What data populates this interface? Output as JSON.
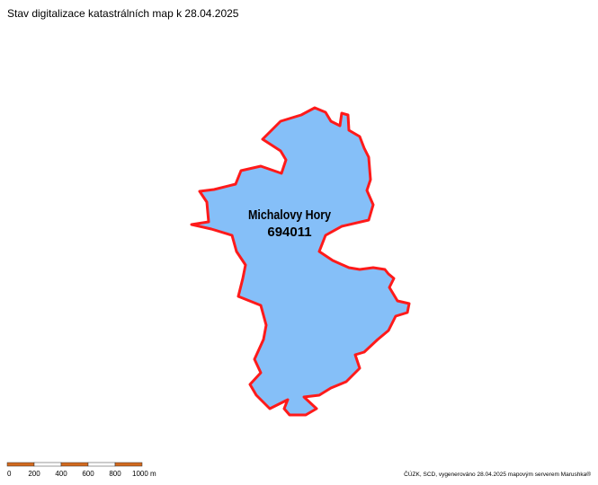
{
  "header": {
    "title": "Stav digitalizace katastrálních map k 28.04.2025"
  },
  "parcel": {
    "name": "Michalovy Hory",
    "code": "694011"
  },
  "scale_bar": {
    "labels": [
      "0",
      "200",
      "400",
      "600",
      "800",
      "1000 m"
    ]
  },
  "footer": {
    "credit": "ČÚZK, SCD, vygenerováno 28.04.2025 mapovým serverem Marushka®"
  }
}
